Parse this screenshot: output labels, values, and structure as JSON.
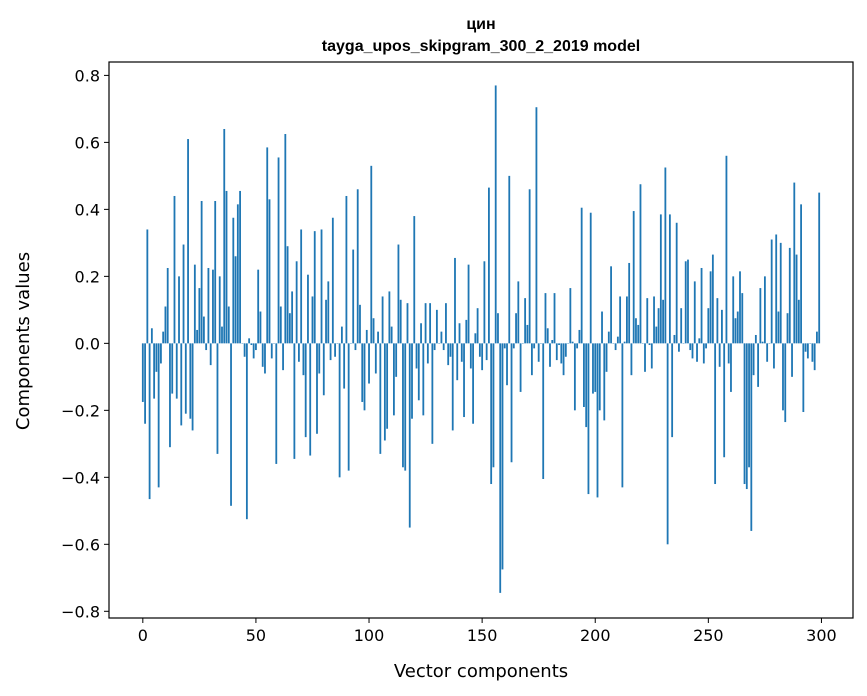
{
  "chart_data": {
    "type": "bar",
    "title": [
      "цин",
      "tayga_upos_skipgram_300_2_2019 model"
    ],
    "xlabel": "Vector components",
    "ylabel": "Components values",
    "xlim": [
      -14.95,
      313.95
    ],
    "ylim": [
      -0.82,
      0.84
    ],
    "xticks": [
      0,
      50,
      100,
      150,
      200,
      250,
      300
    ],
    "yticks": [
      -0.8,
      -0.6,
      -0.4,
      -0.2,
      0.0,
      0.2,
      0.4,
      0.6,
      0.8
    ],
    "ytick_labels": [
      "−0.8",
      "−0.6",
      "−0.4",
      "−0.2",
      "0.0",
      "0.2",
      "0.4",
      "0.6",
      "0.8"
    ],
    "grid": false,
    "bar_color": "#1f77b4",
    "values": [
      -0.175,
      -0.24,
      0.34,
      -0.465,
      0.045,
      -0.165,
      -0.085,
      -0.43,
      -0.06,
      0.035,
      0.11,
      0.225,
      -0.31,
      -0.15,
      0.44,
      -0.165,
      0.2,
      -0.245,
      0.295,
      -0.21,
      0.61,
      -0.225,
      -0.26,
      0.235,
      0.04,
      0.165,
      0.425,
      0.08,
      -0.02,
      0.225,
      -0.065,
      0.22,
      0.425,
      -0.33,
      0.2,
      0.05,
      0.64,
      0.455,
      0.11,
      -0.485,
      0.375,
      0.26,
      0.415,
      0.455,
      0.0,
      -0.04,
      -0.525,
      0.015,
      -0.005,
      -0.045,
      -0.02,
      0.22,
      0.095,
      -0.07,
      -0.09,
      0.585,
      0.43,
      -0.045,
      0.0,
      -0.36,
      0.555,
      0.11,
      -0.08,
      0.625,
      0.29,
      0.09,
      0.155,
      -0.345,
      0.245,
      -0.055,
      0.34,
      -0.095,
      -0.28,
      0.205,
      -0.335,
      0.14,
      0.335,
      -0.27,
      -0.09,
      0.34,
      -0.155,
      0.13,
      0.185,
      -0.05,
      0.375,
      -0.04,
      0.0,
      -0.4,
      0.05,
      -0.135,
      0.44,
      -0.38,
      0.0,
      0.28,
      -0.02,
      0.46,
      0.115,
      -0.175,
      -0.2,
      0.04,
      -0.12,
      0.53,
      0.075,
      -0.09,
      0.035,
      -0.33,
      0.14,
      -0.29,
      -0.255,
      0.155,
      0.05,
      -0.215,
      -0.1,
      0.295,
      0.13,
      -0.37,
      -0.38,
      0.12,
      -0.55,
      -0.225,
      0.38,
      -0.075,
      -0.17,
      0.06,
      -0.215,
      0.12,
      -0.06,
      0.12,
      -0.3,
      -0.02,
      0.1,
      0.0,
      0.035,
      -0.02,
      0.12,
      -0.065,
      -0.04,
      -0.26,
      0.255,
      -0.11,
      0.06,
      -0.055,
      -0.22,
      0.07,
      0.235,
      -0.075,
      -0.24,
      0.03,
      0.105,
      -0.04,
      -0.08,
      0.245,
      -0.05,
      0.465,
      -0.42,
      -0.37,
      0.77,
      0.09,
      -0.745,
      -0.675,
      -0.015,
      -0.125,
      0.5,
      -0.355,
      -0.015,
      0.09,
      0.185,
      -0.145,
      0.0,
      0.135,
      0.055,
      0.46,
      -0.095,
      -0.015,
      0.705,
      -0.055,
      0.0,
      -0.405,
      0.15,
      0.045,
      -0.07,
      0.01,
      0.15,
      -0.05,
      -0.005,
      -0.06,
      -0.095,
      -0.04,
      0.0,
      0.165,
      0.005,
      -0.2,
      -0.015,
      0.04,
      0.405,
      -0.19,
      -0.25,
      -0.45,
      0.39,
      -0.15,
      -0.145,
      -0.46,
      -0.2,
      0.095,
      -0.23,
      -0.085,
      0.035,
      0.23,
      0.0,
      -0.02,
      0.02,
      0.14,
      -0.43,
      0.005,
      0.14,
      0.24,
      -0.095,
      0.395,
      0.075,
      0.055,
      0.475,
      0.0,
      -0.085,
      0.135,
      -0.005,
      -0.075,
      0.14,
      0.05,
      0.105,
      0.385,
      0.13,
      0.525,
      -0.6,
      0.385,
      -0.28,
      0.025,
      0.36,
      -0.025,
      0.105,
      0.0,
      0.245,
      0.25,
      -0.02,
      -0.045,
      0.185,
      -0.055,
      0.015,
      0.225,
      -0.06,
      -0.015,
      0.105,
      0.215,
      0.265,
      -0.42,
      0.135,
      -0.07,
      0.1,
      -0.34,
      0.56,
      -0.06,
      -0.145,
      0.2,
      0.075,
      0.095,
      0.215,
      0.15,
      -0.42,
      -0.435,
      -0.37,
      -0.56,
      -0.095,
      0.025,
      -0.13,
      0.165,
      0.005,
      0.2,
      -0.055,
      0.0,
      0.31,
      -0.075,
      0.325,
      0.095,
      0.3,
      -0.2,
      -0.235,
      0.09,
      0.285,
      -0.1,
      0.48,
      0.265,
      0.13,
      0.415,
      -0.205,
      -0.025,
      -0.045,
      0.0,
      -0.055,
      -0.08,
      0.035,
      0.45
    ]
  }
}
